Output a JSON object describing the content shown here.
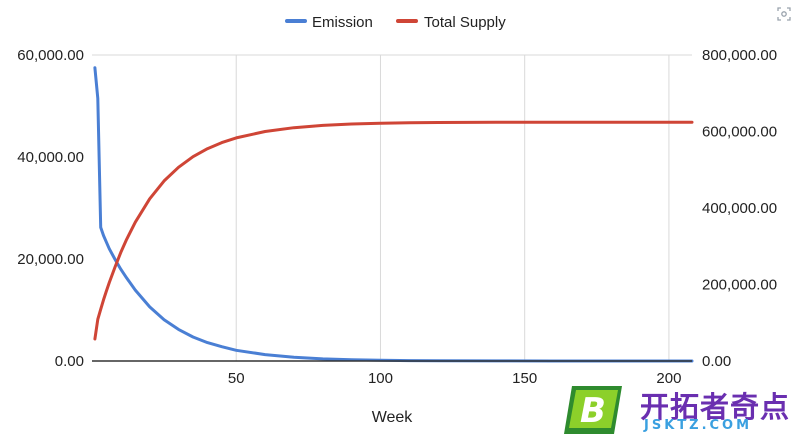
{
  "chart_data": {
    "type": "line",
    "xlabel": "Week",
    "x_ticks": [
      "50",
      "100",
      "150",
      "200"
    ],
    "xlim": [
      0,
      208
    ],
    "y_left": {
      "ticks": [
        "0.00",
        "20,000.00",
        "40,000.00",
        "60,000.00"
      ],
      "ylim": [
        0,
        60000
      ]
    },
    "y_right": {
      "ticks": [
        "0.00",
        "200,000.00",
        "400,000.00",
        "600,000.00",
        "800,000.00"
      ],
      "ylim": [
        0,
        800000
      ]
    },
    "grid": "vertical",
    "legend_position": "top",
    "series": [
      {
        "name": "Emission",
        "axis": "left",
        "color": "#4a7fd4",
        "x": [
          1,
          2,
          3,
          4,
          5,
          6,
          8,
          10,
          12,
          15,
          20,
          25,
          30,
          35,
          40,
          45,
          50,
          60,
          70,
          80,
          90,
          100,
          110,
          120,
          140,
          160,
          180,
          200,
          208
        ],
        "y": [
          57500,
          51500,
          26200,
          24600,
          23300,
          22000,
          19900,
          18000,
          16300,
          13900,
          10600,
          8100,
          6200,
          4700,
          3600,
          2800,
          2100,
          1250,
          720,
          420,
          250,
          150,
          85,
          50,
          17,
          6,
          2,
          1,
          0
        ]
      },
      {
        "name": "Total Supply",
        "axis": "right",
        "color": "#cf4536",
        "x": [
          1,
          2,
          3,
          4,
          5,
          6,
          8,
          10,
          12,
          15,
          20,
          25,
          30,
          35,
          40,
          45,
          50,
          60,
          70,
          80,
          90,
          100,
          110,
          120,
          140,
          160,
          180,
          200,
          208
        ],
        "y": [
          57500,
          109000,
          135200,
          159800,
          183100,
          205100,
          246000,
          284000,
          318000,
          363000,
          424000,
          470800,
          506500,
          534000,
          555000,
          571000,
          583300,
          600000,
          610000,
          616000,
          619500,
          621500,
          622800,
          623500,
          624000,
          624200,
          624300,
          624400,
          624400
        ]
      }
    ]
  },
  "watermark": {
    "cn_text": "开拓者奇点",
    "url_text": "JSKTZ.COM",
    "logo_letter": "B"
  },
  "icons": {
    "top_right": "zoom-icon"
  }
}
